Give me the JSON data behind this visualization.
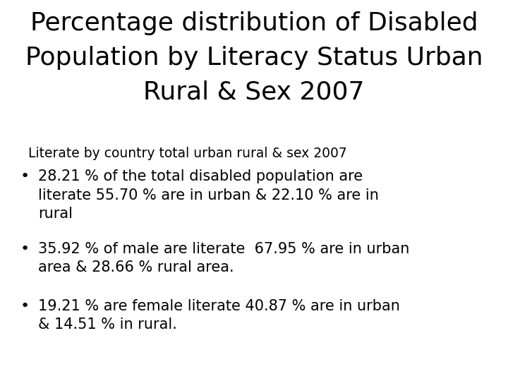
{
  "title": "Percentage distribution of Disabled\nPopulation by Literacy Status Urban\nRural & Sex 2007",
  "subtitle": "Literate by country total urban rural & sex 2007",
  "bullets": [
    "28.21 % of the total disabled population are\nliterate 55.70 % are in urban & 22.10 % are in\nrural",
    "35.92 % of male are literate  67.95 % are in urban\narea & 28.66 % rural area.",
    "19.21 % are female literate 40.87 % are in urban\n& 14.51 % in rural."
  ],
  "background_color": "#ffffff",
  "text_color": "#000000",
  "title_fontsize": 26,
  "subtitle_fontsize": 13.5,
  "bullet_fontsize": 15
}
